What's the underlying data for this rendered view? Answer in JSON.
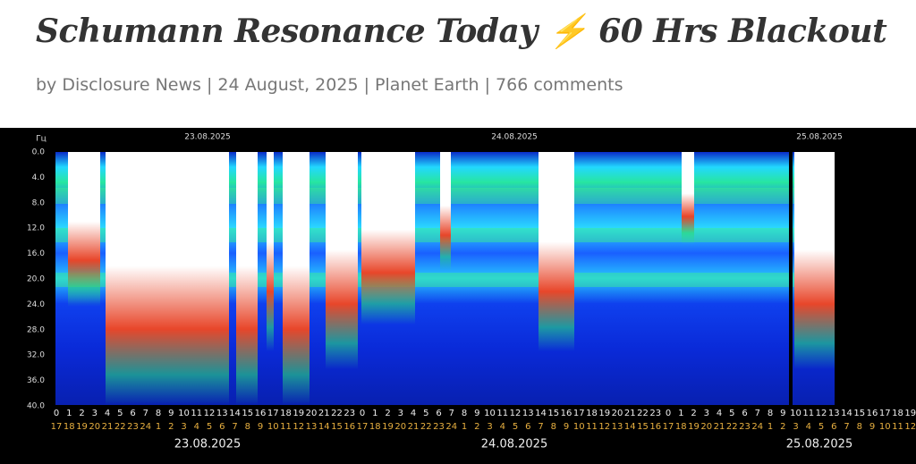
{
  "header": {
    "title": "Schumann Resonance Today ⚡ 60 Hrs Blackout",
    "meta": "by Disclosure News | 24 August, 2025 | Planet Earth | 766 comments"
  },
  "spectrogram": {
    "unit": "Гц",
    "yticks": [
      "0.0",
      "4.0",
      "8.0",
      "12.0",
      "16.0",
      "20.0",
      "24.0",
      "28.0",
      "32.0",
      "36.0",
      "40.0"
    ],
    "top_dates": [
      "23.08.2025",
      "24.08.2025",
      "25.08.2025"
    ],
    "hours": [
      "0",
      "1",
      "2",
      "3",
      "4",
      "5",
      "6",
      "7",
      "8",
      "9",
      "10",
      "11",
      "12",
      "13",
      "14",
      "15",
      "16",
      "17",
      "18",
      "19",
      "20",
      "21",
      "22",
      "23",
      "0",
      "1",
      "2",
      "3",
      "4",
      "5",
      "6",
      "7",
      "8",
      "9",
      "10",
      "11",
      "12",
      "13",
      "14",
      "15",
      "16",
      "17",
      "18",
      "19",
      "20",
      "21",
      "22",
      "23",
      "0",
      "1",
      "2",
      "3",
      "4",
      "5",
      "6",
      "7",
      "8",
      "9",
      "10",
      "11",
      "12",
      "13",
      "14",
      "15",
      "16",
      "17",
      "18",
      "19"
    ],
    "local_hours": [
      "17",
      "18",
      "19",
      "20",
      "21",
      "22",
      "23",
      "24",
      "1",
      "2",
      "3",
      "4",
      "5",
      "6",
      "7",
      "8",
      "9",
      "10",
      "11",
      "12",
      "13",
      "14",
      "15",
      "16",
      "17",
      "18",
      "19",
      "20",
      "21",
      "22",
      "23",
      "24",
      "1",
      "2",
      "3",
      "4",
      "5",
      "6",
      "7",
      "8",
      "9",
      "10",
      "11",
      "12",
      "13",
      "14",
      "15",
      "16",
      "17",
      "18",
      "19",
      "20",
      "21",
      "22",
      "23",
      "24",
      "1",
      "2",
      "3",
      "4",
      "5",
      "6",
      "7",
      "8",
      "9",
      "10",
      "11",
      "12"
    ],
    "bottom_dates": [
      "23.08.2025",
      "24.08.2025",
      "25.08.2025"
    ]
  }
}
